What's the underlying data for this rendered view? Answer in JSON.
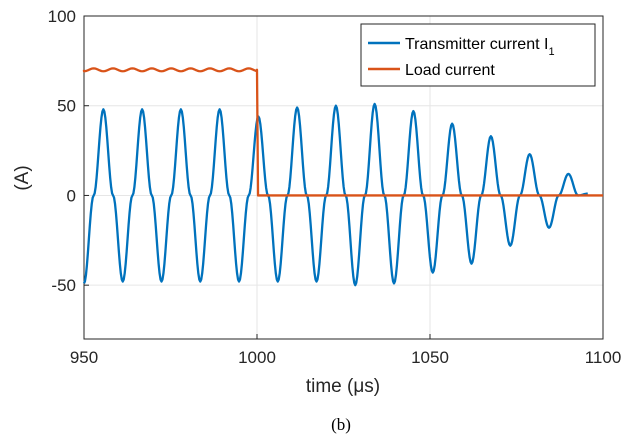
{
  "chart_data": {
    "type": "line",
    "title": "",
    "xlabel": "time (μs)",
    "ylabel": "(A)",
    "xlim": [
      950,
      1100
    ],
    "ylim": [
      -80,
      100
    ],
    "xticks": [
      950,
      1000,
      1050,
      1100
    ],
    "xtick_labels": [
      "950",
      "1000",
      "1050",
      "1100"
    ],
    "yticks": [
      -50,
      0,
      50,
      100
    ],
    "ytick_labels": [
      "-50",
      "0",
      "50",
      "100"
    ],
    "grid": true,
    "legend_placement": "top-right",
    "legend_labels": {
      "transmitter": "Transmitter current I",
      "transmitter_subscript": "1",
      "load": "Load current"
    },
    "caption": "(b)",
    "series": [
      {
        "key": "transmitter",
        "color": "#0072BD",
        "points": [
          [
            950,
            -49
          ],
          [
            952.8,
            0
          ],
          [
            955.6,
            48
          ],
          [
            958.4,
            0
          ],
          [
            961.2,
            -48
          ],
          [
            964,
            0
          ],
          [
            966.8,
            48
          ],
          [
            969.6,
            0
          ],
          [
            972.4,
            -48
          ],
          [
            975.2,
            0
          ],
          [
            978,
            48
          ],
          [
            980.8,
            0
          ],
          [
            983.6,
            -48
          ],
          [
            986.4,
            0
          ],
          [
            989.2,
            48
          ],
          [
            992,
            0
          ],
          [
            994.8,
            -48
          ],
          [
            997.6,
            0
          ],
          [
            1000.4,
            44
          ],
          [
            1003.2,
            0
          ],
          [
            1006,
            -48
          ],
          [
            1008.8,
            0
          ],
          [
            1011.6,
            49
          ],
          [
            1014.4,
            0
          ],
          [
            1017.2,
            -48
          ],
          [
            1020,
            0
          ],
          [
            1022.8,
            50
          ],
          [
            1025.6,
            0
          ],
          [
            1028.4,
            -50
          ],
          [
            1031.2,
            0
          ],
          [
            1034,
            51
          ],
          [
            1036.8,
            0
          ],
          [
            1039.6,
            -49
          ],
          [
            1042.4,
            0
          ],
          [
            1045.2,
            47
          ],
          [
            1048,
            0
          ],
          [
            1050.8,
            -43
          ],
          [
            1053.6,
            0
          ],
          [
            1056.4,
            40
          ],
          [
            1059.2,
            0
          ],
          [
            1062,
            -38
          ],
          [
            1064.8,
            0
          ],
          [
            1067.6,
            33
          ],
          [
            1070.4,
            0
          ],
          [
            1073.2,
            -28
          ],
          [
            1076,
            0
          ],
          [
            1078.8,
            23
          ],
          [
            1081.6,
            0
          ],
          [
            1084.4,
            -18
          ],
          [
            1087.2,
            0
          ],
          [
            1090,
            12
          ],
          [
            1092.8,
            0
          ],
          [
            1095.6,
            1
          ]
        ]
      },
      {
        "key": "load",
        "color": "#D95319",
        "points": [
          [
            950,
            70
          ],
          [
            1000,
            70
          ],
          [
            1000.3,
            0
          ],
          [
            1100,
            0
          ]
        ]
      }
    ]
  }
}
